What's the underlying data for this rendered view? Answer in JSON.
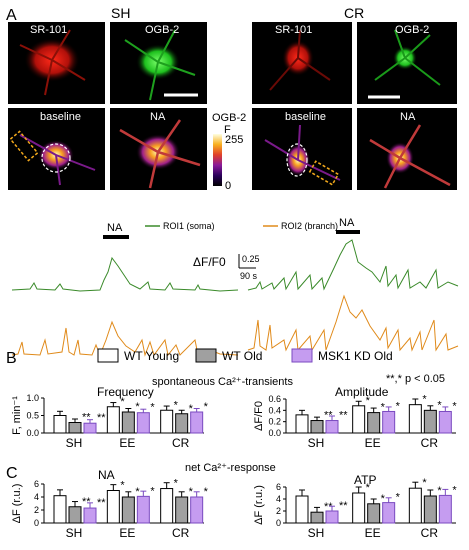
{
  "panel_letters": {
    "a": "A",
    "b": "B",
    "c": "C"
  },
  "imaging": {
    "sh": {
      "condition": "SH",
      "tile_sr101": "SR-101",
      "tile_ogb": "OGB-2",
      "tile_baseline": "baseline",
      "tile_na": "NA"
    },
    "cr": {
      "condition": "CR",
      "tile_sr101": "SR-101",
      "tile_ogb": "OGB-2",
      "tile_baseline": "baseline",
      "tile_na": "NA"
    },
    "colorbar": {
      "title": "F",
      "dye": "OGB-2",
      "max": "255",
      "min": "0"
    },
    "colors": {
      "sr101": "#e0201a",
      "ogb": "#2ee02e",
      "roi1": "#3a8a2a",
      "roi2": "#e08a1a",
      "roi_box": "#f2a81c"
    }
  },
  "traces": {
    "na_label_left": "NA",
    "na_label_right": "NA",
    "roi1_legend": "ROI1 (soma)",
    "roi2_legend": "ROI2 (branch)",
    "scale_y_label": "ΔF/F0",
    "scale_y_value": "0.25",
    "scale_x_value": "90 s"
  },
  "legend": {
    "wt_young": "WT Young",
    "wt_old": "WT Old",
    "msk1": "MSK1 KD Old",
    "colors": {
      "wt_young": "#ffffff",
      "wt_old": "#a0a0a0",
      "msk1": "#c59cf0"
    }
  },
  "section_titles": {
    "spontaneous": "spontaneous  Ca²⁺-transients",
    "net": "net Ca²⁺-response",
    "signif": "**,* p < 0.05"
  },
  "chart_data": [
    {
      "type": "bar",
      "title": "Frequency",
      "ylabel": "F, min⁻¹",
      "categories": [
        "SH",
        "EE",
        "CR"
      ],
      "ylim": [
        0,
        1.0
      ],
      "yticks": [
        "0.0",
        "0.5",
        "1.0"
      ],
      "series": [
        {
          "name": "WT Young",
          "values": [
            0.5,
            0.75,
            0.65
          ],
          "errors": [
            0.12,
            0.12,
            0.12
          ]
        },
        {
          "name": "WT Old",
          "values": [
            0.3,
            0.6,
            0.55
          ],
          "errors": [
            0.1,
            0.1,
            0.1
          ]
        },
        {
          "name": "MSK1 KD Old",
          "values": [
            0.28,
            0.58,
            0.6
          ],
          "errors": [
            0.1,
            0.1,
            0.1
          ]
        }
      ],
      "marks": [
        [
          "",
          "**",
          "**"
        ],
        [
          "*",
          "*",
          "*"
        ],
        [
          "*",
          "*",
          "*"
        ]
      ]
    },
    {
      "type": "bar",
      "title": "Amplitude",
      "ylabel": "ΔF/F0",
      "categories": [
        "SH",
        "EE",
        "CR"
      ],
      "ylim": [
        0,
        0.6
      ],
      "yticks": [
        "0.0",
        "0.2",
        "0.4",
        "0.6"
      ],
      "series": [
        {
          "name": "WT Young",
          "values": [
            0.32,
            0.48,
            0.5
          ],
          "errors": [
            0.08,
            0.08,
            0.1
          ]
        },
        {
          "name": "WT Old",
          "values": [
            0.22,
            0.36,
            0.4
          ],
          "errors": [
            0.06,
            0.08,
            0.08
          ]
        },
        {
          "name": "MSK1 KD Old",
          "values": [
            0.22,
            0.38,
            0.38
          ],
          "errors": [
            0.08,
            0.08,
            0.08
          ]
        }
      ],
      "marks": [
        [
          "",
          "**",
          "**"
        ],
        [
          "*",
          "*",
          "*"
        ],
        [
          "*",
          "*",
          "*"
        ]
      ]
    },
    {
      "type": "bar",
      "title": "NA",
      "ylabel": "ΔF (r.u.)",
      "categories": [
        "SH",
        "EE",
        "CR"
      ],
      "ylim": [
        0,
        6
      ],
      "yticks": [
        "0",
        "2",
        "4",
        "6"
      ],
      "series": [
        {
          "name": "WT Young",
          "values": [
            4.2,
            5.0,
            5.3
          ],
          "errors": [
            0.9,
            0.9,
            0.9
          ]
        },
        {
          "name": "WT Old",
          "values": [
            2.5,
            4.0,
            4.0
          ],
          "errors": [
            0.8,
            0.8,
            0.8
          ]
        },
        {
          "name": "MSK1 KD Old",
          "values": [
            2.3,
            4.1,
            4.0
          ],
          "errors": [
            0.8,
            0.8,
            0.8
          ]
        }
      ],
      "marks": [
        [
          "",
          "**",
          "**"
        ],
        [
          "*",
          "*",
          "*"
        ],
        [
          "*",
          "*",
          "*"
        ]
      ]
    },
    {
      "type": "bar",
      "title": "ATP",
      "ylabel": "ΔF (r.u.)",
      "categories": [
        "SH",
        "EE",
        "CR"
      ],
      "ylim": [
        0,
        6
      ],
      "yticks": [
        "0",
        "2",
        "4",
        "6"
      ],
      "series": [
        {
          "name": "WT Young",
          "values": [
            4.5,
            5.0,
            5.8
          ],
          "errors": [
            1.0,
            1.0,
            1.0
          ]
        },
        {
          "name": "WT Old",
          "values": [
            1.8,
            3.2,
            4.5
          ],
          "errors": [
            0.8,
            0.8,
            1.0
          ]
        },
        {
          "name": "MSK1 KD Old",
          "values": [
            2.0,
            3.4,
            4.6
          ],
          "errors": [
            0.8,
            0.8,
            1.0
          ]
        }
      ],
      "marks": [
        [
          "",
          "**",
          "**"
        ],
        [
          "*",
          "*",
          "*"
        ],
        [
          "*",
          "*",
          "*"
        ]
      ]
    }
  ]
}
